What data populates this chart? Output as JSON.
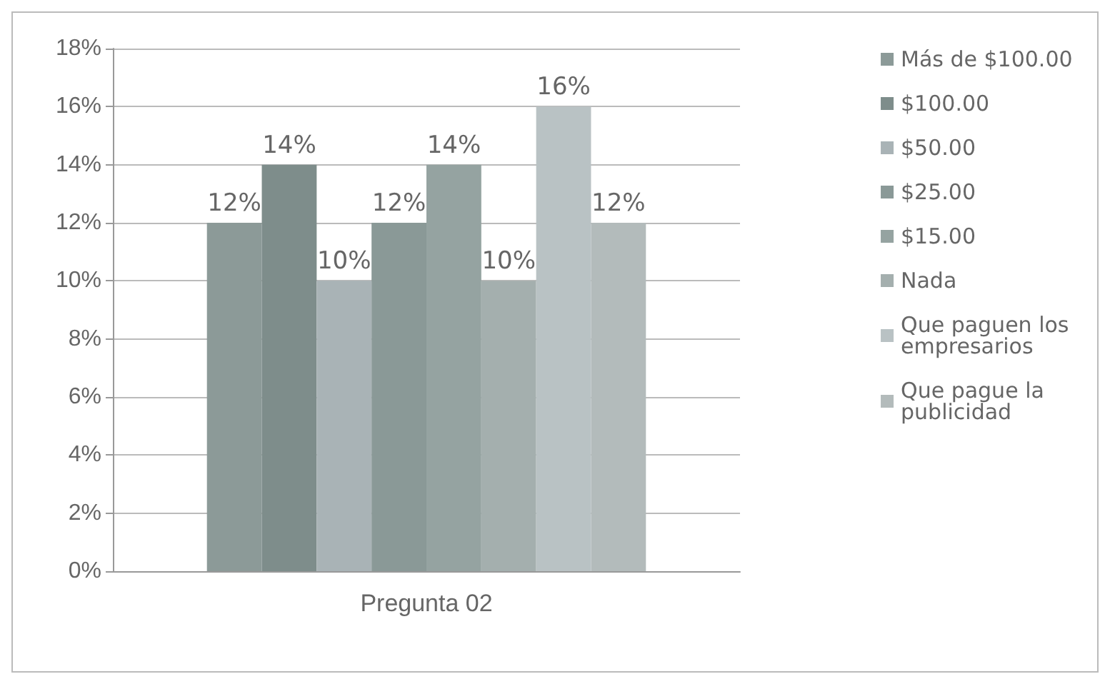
{
  "chart_data": {
    "type": "bar",
    "categories": [
      "Pregunta 02"
    ],
    "series": [
      {
        "name": "Más de $100.00",
        "color": "#8c9a98",
        "values": [
          12
        ],
        "value_labels": [
          "12%"
        ]
      },
      {
        "name": "$100.00",
        "color": "#7e8d8b",
        "values": [
          14
        ],
        "value_labels": [
          "14%"
        ]
      },
      {
        "name": "$50.00",
        "color": "#a9b3b6",
        "values": [
          10
        ],
        "value_labels": [
          "10%"
        ]
      },
      {
        "name": "$25.00",
        "color": "#8a9997",
        "values": [
          12
        ],
        "value_labels": [
          "12%"
        ]
      },
      {
        "name": "$15.00",
        "color": "#95a3a1",
        "values": [
          14
        ],
        "value_labels": [
          "14%"
        ]
      },
      {
        "name": "Nada",
        "color": "#a4afae",
        "values": [
          10
        ],
        "value_labels": [
          "10%"
        ]
      },
      {
        "name": "Que paguen los empresarios",
        "color": "#b9c2c4",
        "values": [
          16
        ],
        "value_labels": [
          "16%"
        ]
      },
      {
        "name": "Que pague la publicidad",
        "color": "#b3bbbb",
        "values": [
          12
        ],
        "value_labels": [
          "12%"
        ]
      }
    ],
    "ylim": [
      0,
      18
    ],
    "yticks": [
      {
        "value": 0,
        "label": "0%"
      },
      {
        "value": 2,
        "label": "2%"
      },
      {
        "value": 4,
        "label": "4%"
      },
      {
        "value": 6,
        "label": "6%"
      },
      {
        "value": 8,
        "label": "8%"
      },
      {
        "value": 10,
        "label": "10%"
      },
      {
        "value": 12,
        "label": "12%"
      },
      {
        "value": 14,
        "label": "14%"
      },
      {
        "value": 16,
        "label": "16%"
      },
      {
        "value": 18,
        "label": "18%"
      }
    ],
    "grid": "y",
    "legend": "right"
  }
}
